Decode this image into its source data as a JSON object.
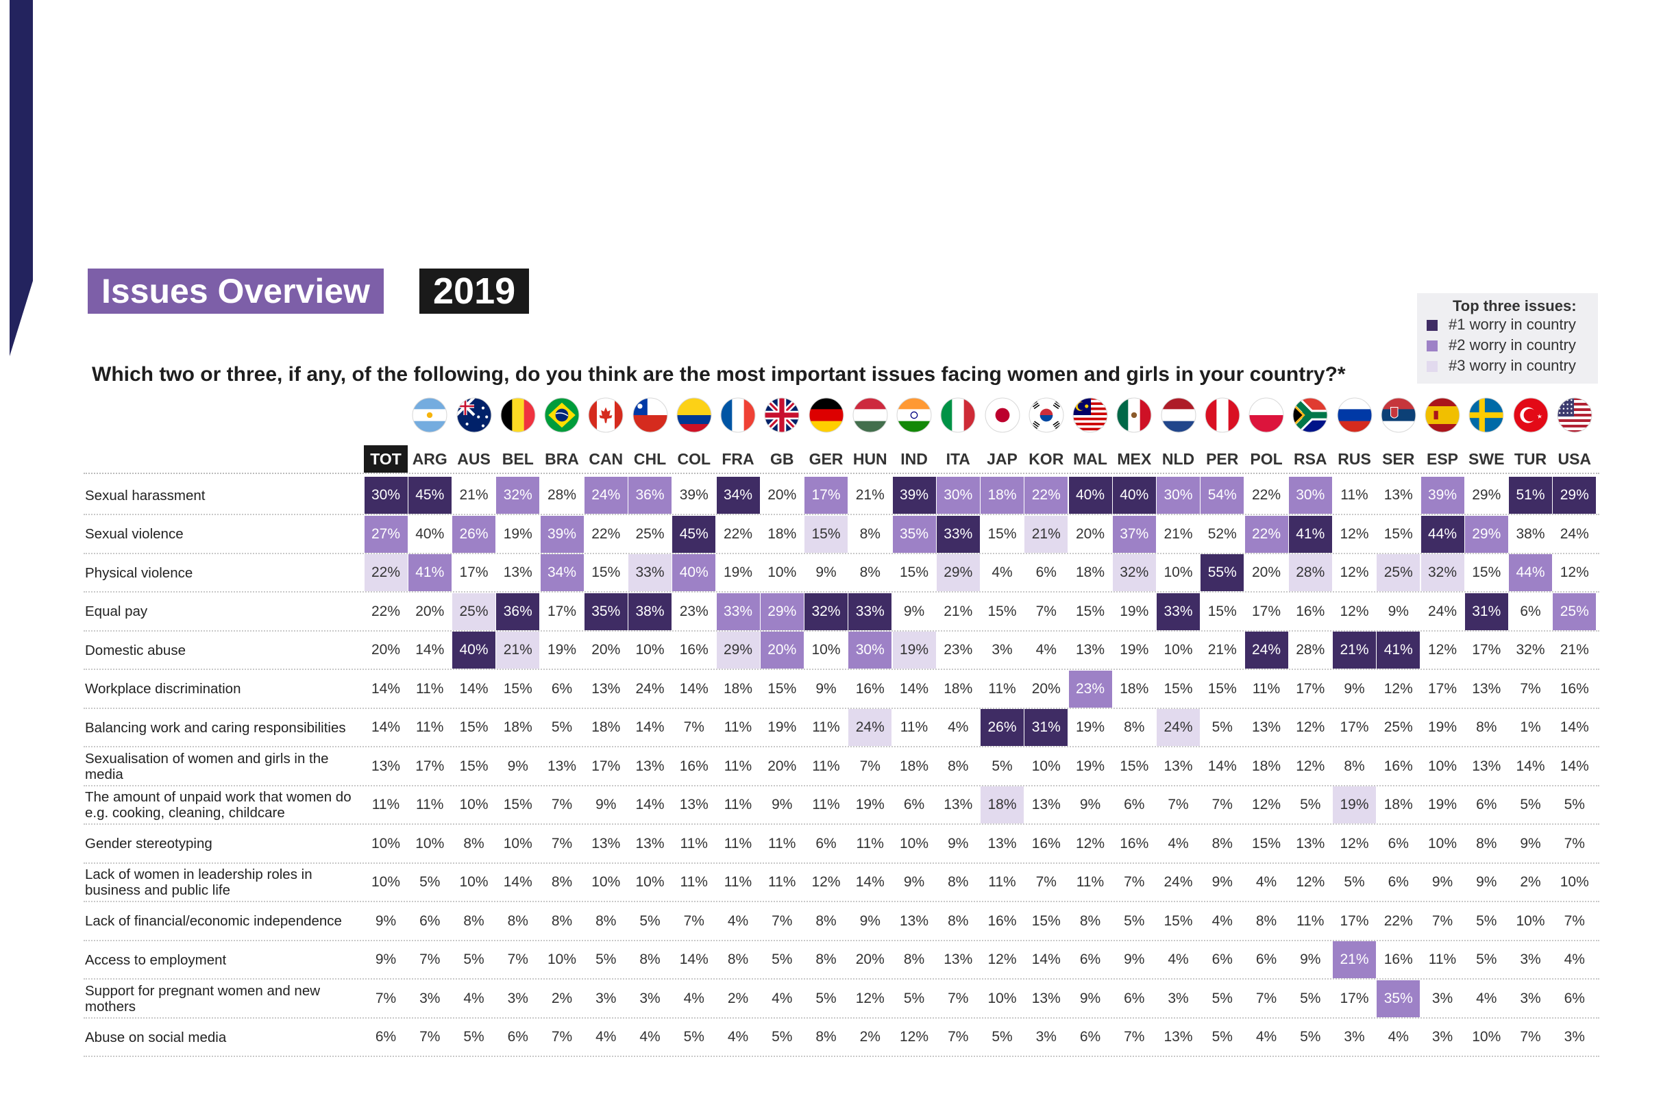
{
  "title": "Issues Overview",
  "year": "2019",
  "question": "Which two or three, if any, of the following, do you think are the most important issues facing women and girls in your country?*",
  "legend": {
    "title": "Top three issues:",
    "items": [
      {
        "label": "#1 worry in country",
        "color": "#3f2c64"
      },
      {
        "label": "#2 worry in country",
        "color": "#9d81c6"
      },
      {
        "label": "#3 worry in country",
        "color": "#e2daee"
      }
    ]
  },
  "colors": {
    "accent_bar": "#23235e",
    "title_bg": "#7d5fa8",
    "year_bg": "#1a1a1a",
    "rank1": "#3f2c64",
    "rank2": "#9d81c6",
    "rank3": "#e2daee"
  },
  "flags": [
    {
      "country": "ARG",
      "icon": "argentina-flag-icon"
    },
    {
      "country": "AUS",
      "icon": "australia-flag-icon"
    },
    {
      "country": "BEL",
      "icon": "belgium-flag-icon"
    },
    {
      "country": "BRA",
      "icon": "brazil-flag-icon"
    },
    {
      "country": "CAN",
      "icon": "canada-flag-icon"
    },
    {
      "country": "CHL",
      "icon": "chile-flag-icon"
    },
    {
      "country": "COL",
      "icon": "colombia-flag-icon"
    },
    {
      "country": "FRA",
      "icon": "france-flag-icon"
    },
    {
      "country": "GB",
      "icon": "uk-flag-icon"
    },
    {
      "country": "GER",
      "icon": "germany-flag-icon"
    },
    {
      "country": "HUN",
      "icon": "hungary-flag-icon"
    },
    {
      "country": "IND",
      "icon": "india-flag-icon"
    },
    {
      "country": "ITA",
      "icon": "italy-flag-icon"
    },
    {
      "country": "JAP",
      "icon": "japan-flag-icon"
    },
    {
      "country": "KOR",
      "icon": "korea-flag-icon"
    },
    {
      "country": "MAL",
      "icon": "malaysia-flag-icon"
    },
    {
      "country": "MEX",
      "icon": "mexico-flag-icon"
    },
    {
      "country": "NLD",
      "icon": "netherlands-flag-icon"
    },
    {
      "country": "PER",
      "icon": "peru-flag-icon"
    },
    {
      "country": "POL",
      "icon": "poland-flag-icon"
    },
    {
      "country": "RSA",
      "icon": "south-africa-flag-icon"
    },
    {
      "country": "RUS",
      "icon": "russia-flag-icon"
    },
    {
      "country": "SER",
      "icon": "serbia-flag-icon"
    },
    {
      "country": "ESP",
      "icon": "spain-flag-icon"
    },
    {
      "country": "SWE",
      "icon": "sweden-flag-icon"
    },
    {
      "country": "TUR",
      "icon": "turkey-flag-icon"
    },
    {
      "country": "USA",
      "icon": "usa-flag-icon"
    }
  ],
  "chart_data": {
    "type": "table",
    "columns": [
      "TOT",
      "ARG",
      "AUS",
      "BEL",
      "BRA",
      "CAN",
      "CHL",
      "COL",
      "FRA",
      "GB",
      "GER",
      "HUN",
      "IND",
      "ITA",
      "JAP",
      "KOR",
      "MAL",
      "MEX",
      "NLD",
      "PER",
      "POL",
      "RSA",
      "RUS",
      "SER",
      "ESP",
      "SWE",
      "TUR",
      "USA"
    ],
    "rows": [
      {
        "label": "Sexual harassment",
        "values": [
          "30%",
          "45%",
          "21%",
          "32%",
          "28%",
          "24%",
          "36%",
          "39%",
          "34%",
          "20%",
          "17%",
          "21%",
          "39%",
          "30%",
          "18%",
          "22%",
          "40%",
          "40%",
          "30%",
          "54%",
          "22%",
          "30%",
          "11%",
          "13%",
          "39%",
          "29%",
          "51%",
          "29%"
        ],
        "ranks": [
          1,
          1,
          0,
          2,
          0,
          2,
          2,
          0,
          1,
          0,
          2,
          0,
          1,
          2,
          2,
          2,
          1,
          1,
          2,
          2,
          0,
          2,
          0,
          0,
          2,
          0,
          1,
          1
        ]
      },
      {
        "label": "Sexual violence",
        "values": [
          "27%",
          "40%",
          "26%",
          "19%",
          "39%",
          "22%",
          "25%",
          "45%",
          "22%",
          "18%",
          "15%",
          "8%",
          "35%",
          "33%",
          "15%",
          "21%",
          "20%",
          "37%",
          "21%",
          "52%",
          "22%",
          "41%",
          "12%",
          "15%",
          "44%",
          "29%",
          "38%",
          "24%"
        ],
        "ranks": [
          2,
          0,
          2,
          0,
          2,
          0,
          0,
          1,
          0,
          0,
          3,
          0,
          2,
          1,
          0,
          3,
          0,
          2,
          0,
          0,
          2,
          1,
          0,
          0,
          1,
          2,
          0,
          0
        ]
      },
      {
        "label": "Physical violence",
        "values": [
          "22%",
          "41%",
          "17%",
          "13%",
          "34%",
          "15%",
          "33%",
          "40%",
          "19%",
          "10%",
          "9%",
          "8%",
          "15%",
          "29%",
          "4%",
          "6%",
          "18%",
          "32%",
          "10%",
          "55%",
          "20%",
          "28%",
          "12%",
          "25%",
          "32%",
          "15%",
          "44%",
          "12%"
        ],
        "ranks": [
          3,
          2,
          0,
          0,
          2,
          0,
          3,
          2,
          0,
          0,
          0,
          0,
          0,
          3,
          0,
          0,
          0,
          3,
          0,
          1,
          0,
          3,
          0,
          3,
          3,
          0,
          2,
          0
        ]
      },
      {
        "label": "Equal pay",
        "values": [
          "22%",
          "20%",
          "25%",
          "36%",
          "17%",
          "35%",
          "38%",
          "23%",
          "33%",
          "29%",
          "32%",
          "33%",
          "9%",
          "21%",
          "15%",
          "7%",
          "15%",
          "19%",
          "33%",
          "15%",
          "17%",
          "16%",
          "12%",
          "9%",
          "24%",
          "31%",
          "6%",
          "25%"
        ],
        "ranks": [
          0,
          0,
          3,
          1,
          0,
          1,
          1,
          0,
          2,
          2,
          1,
          1,
          0,
          0,
          0,
          0,
          0,
          0,
          1,
          0,
          0,
          0,
          0,
          0,
          0,
          1,
          0,
          2
        ]
      },
      {
        "label": "Domestic abuse",
        "values": [
          "20%",
          "14%",
          "40%",
          "21%",
          "19%",
          "20%",
          "10%",
          "16%",
          "29%",
          "20%",
          "10%",
          "30%",
          "19%",
          "23%",
          "3%",
          "4%",
          "13%",
          "19%",
          "10%",
          "21%",
          "24%",
          "28%",
          "21%",
          "41%",
          "12%",
          "17%",
          "32%",
          "21%"
        ],
        "ranks": [
          0,
          0,
          1,
          3,
          0,
          0,
          0,
          0,
          3,
          2,
          0,
          2,
          3,
          0,
          0,
          0,
          0,
          0,
          0,
          0,
          1,
          0,
          1,
          1,
          0,
          0,
          0,
          0
        ]
      },
      {
        "label": "Workplace discrimination",
        "values": [
          "14%",
          "11%",
          "14%",
          "15%",
          "6%",
          "13%",
          "24%",
          "14%",
          "18%",
          "15%",
          "9%",
          "16%",
          "14%",
          "18%",
          "11%",
          "20%",
          "23%",
          "18%",
          "15%",
          "15%",
          "11%",
          "17%",
          "9%",
          "12%",
          "17%",
          "13%",
          "7%",
          "16%"
        ],
        "ranks": [
          0,
          0,
          0,
          0,
          0,
          0,
          0,
          0,
          0,
          0,
          0,
          0,
          0,
          0,
          0,
          0,
          2,
          0,
          0,
          0,
          0,
          0,
          0,
          0,
          0,
          0,
          0,
          0
        ]
      },
      {
        "label": "Balancing work and caring responsibilities",
        "values": [
          "14%",
          "11%",
          "15%",
          "18%",
          "5%",
          "18%",
          "14%",
          "7%",
          "11%",
          "19%",
          "11%",
          "24%",
          "11%",
          "4%",
          "26%",
          "31%",
          "19%",
          "8%",
          "24%",
          "5%",
          "13%",
          "12%",
          "17%",
          "25%",
          "19%",
          "8%",
          "1%",
          "14%"
        ],
        "ranks": [
          0,
          0,
          0,
          0,
          0,
          0,
          0,
          0,
          0,
          0,
          0,
          3,
          0,
          0,
          1,
          1,
          0,
          0,
          3,
          0,
          0,
          0,
          0,
          0,
          0,
          0,
          0,
          0
        ]
      },
      {
        "label": "Sexualisation of women and girls in the media",
        "values": [
          "13%",
          "17%",
          "15%",
          "9%",
          "13%",
          "17%",
          "13%",
          "16%",
          "11%",
          "20%",
          "11%",
          "7%",
          "18%",
          "8%",
          "5%",
          "10%",
          "19%",
          "15%",
          "13%",
          "14%",
          "18%",
          "12%",
          "8%",
          "16%",
          "10%",
          "13%",
          "14%",
          "14%"
        ],
        "ranks": [
          0,
          0,
          0,
          0,
          0,
          0,
          0,
          0,
          0,
          0,
          0,
          0,
          0,
          0,
          0,
          0,
          0,
          0,
          0,
          0,
          0,
          0,
          0,
          0,
          0,
          0,
          0,
          0
        ]
      },
      {
        "label": "The amount of unpaid work that women do e.g. cooking, cleaning, childcare",
        "values": [
          "11%",
          "11%",
          "10%",
          "15%",
          "7%",
          "9%",
          "14%",
          "13%",
          "11%",
          "9%",
          "11%",
          "19%",
          "6%",
          "13%",
          "18%",
          "13%",
          "9%",
          "6%",
          "7%",
          "7%",
          "12%",
          "5%",
          "19%",
          "18%",
          "19%",
          "6%",
          "5%",
          "5%"
        ],
        "ranks": [
          0,
          0,
          0,
          0,
          0,
          0,
          0,
          0,
          0,
          0,
          0,
          0,
          0,
          0,
          3,
          0,
          0,
          0,
          0,
          0,
          0,
          0,
          3,
          0,
          0,
          0,
          0,
          0
        ]
      },
      {
        "label": "Gender stereotyping",
        "values": [
          "10%",
          "10%",
          "8%",
          "10%",
          "7%",
          "13%",
          "13%",
          "11%",
          "11%",
          "11%",
          "6%",
          "11%",
          "10%",
          "9%",
          "13%",
          "16%",
          "12%",
          "16%",
          "4%",
          "8%",
          "15%",
          "13%",
          "12%",
          "6%",
          "10%",
          "8%",
          "9%",
          "7%"
        ],
        "ranks": [
          0,
          0,
          0,
          0,
          0,
          0,
          0,
          0,
          0,
          0,
          0,
          0,
          0,
          0,
          0,
          0,
          0,
          0,
          0,
          0,
          0,
          0,
          0,
          0,
          0,
          0,
          0,
          0
        ]
      },
      {
        "label": "Lack of women in leadership roles in business and public life",
        "values": [
          "10%",
          "5%",
          "10%",
          "14%",
          "8%",
          "10%",
          "10%",
          "11%",
          "11%",
          "11%",
          "12%",
          "14%",
          "9%",
          "8%",
          "11%",
          "7%",
          "11%",
          "7%",
          "24%",
          "9%",
          "4%",
          "12%",
          "5%",
          "6%",
          "9%",
          "9%",
          "2%",
          "10%"
        ],
        "ranks": [
          0,
          0,
          0,
          0,
          0,
          0,
          0,
          0,
          0,
          0,
          0,
          0,
          0,
          0,
          0,
          0,
          0,
          0,
          0,
          0,
          0,
          0,
          0,
          0,
          0,
          0,
          0,
          0
        ]
      },
      {
        "label": "Lack of financial/economic independence",
        "values": [
          "9%",
          "6%",
          "8%",
          "8%",
          "8%",
          "8%",
          "5%",
          "7%",
          "4%",
          "7%",
          "8%",
          "9%",
          "13%",
          "8%",
          "16%",
          "15%",
          "8%",
          "5%",
          "15%",
          "4%",
          "8%",
          "11%",
          "17%",
          "22%",
          "7%",
          "5%",
          "10%",
          "7%"
        ],
        "ranks": [
          0,
          0,
          0,
          0,
          0,
          0,
          0,
          0,
          0,
          0,
          0,
          0,
          0,
          0,
          0,
          0,
          0,
          0,
          0,
          0,
          0,
          0,
          0,
          0,
          0,
          0,
          0,
          0
        ]
      },
      {
        "label": "Access to employment",
        "values": [
          "9%",
          "7%",
          "5%",
          "7%",
          "10%",
          "5%",
          "8%",
          "14%",
          "8%",
          "5%",
          "8%",
          "20%",
          "8%",
          "13%",
          "12%",
          "14%",
          "6%",
          "9%",
          "4%",
          "6%",
          "6%",
          "9%",
          "21%",
          "16%",
          "11%",
          "5%",
          "3%",
          "4%"
        ],
        "ranks": [
          0,
          0,
          0,
          0,
          0,
          0,
          0,
          0,
          0,
          0,
          0,
          0,
          0,
          0,
          0,
          0,
          0,
          0,
          0,
          0,
          0,
          0,
          2,
          0,
          0,
          0,
          0,
          0
        ]
      },
      {
        "label": "Support for pregnant women and new mothers",
        "values": [
          "7%",
          "3%",
          "4%",
          "3%",
          "2%",
          "3%",
          "3%",
          "4%",
          "2%",
          "4%",
          "5%",
          "12%",
          "5%",
          "7%",
          "10%",
          "13%",
          "9%",
          "6%",
          "3%",
          "5%",
          "7%",
          "5%",
          "17%",
          "35%",
          "3%",
          "4%",
          "3%",
          "6%"
        ],
        "ranks": [
          0,
          0,
          0,
          0,
          0,
          0,
          0,
          0,
          0,
          0,
          0,
          0,
          0,
          0,
          0,
          0,
          0,
          0,
          0,
          0,
          0,
          0,
          0,
          2,
          0,
          0,
          0,
          0
        ]
      },
      {
        "label": "Abuse on social media",
        "values": [
          "6%",
          "7%",
          "5%",
          "6%",
          "7%",
          "4%",
          "4%",
          "5%",
          "4%",
          "5%",
          "8%",
          "2%",
          "12%",
          "7%",
          "5%",
          "3%",
          "6%",
          "7%",
          "13%",
          "5%",
          "4%",
          "5%",
          "3%",
          "4%",
          "3%",
          "10%",
          "7%",
          "3%"
        ],
        "ranks": [
          0,
          0,
          0,
          0,
          0,
          0,
          0,
          0,
          0,
          0,
          0,
          0,
          0,
          0,
          0,
          0,
          0,
          0,
          0,
          0,
          0,
          0,
          0,
          0,
          0,
          0,
          0,
          0
        ]
      }
    ]
  }
}
